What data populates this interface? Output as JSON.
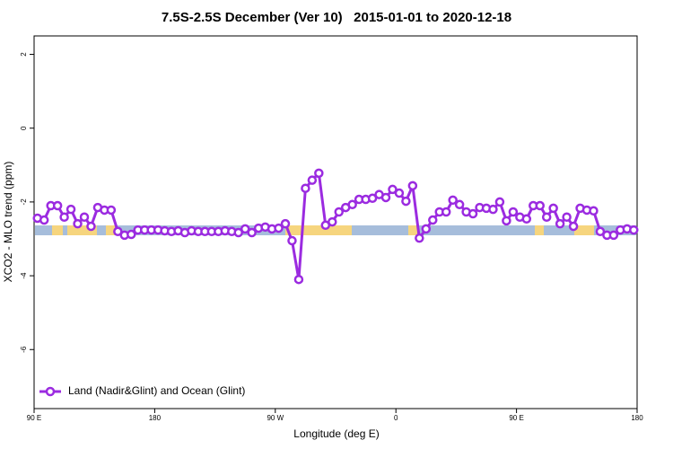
{
  "chart_data": {
    "type": "line",
    "title": "7.5S-2.5S December (Ver 10)   2015-01-01 to 2020-12-18",
    "x_label": "Longitude (deg E)",
    "y_label": "XCO2 - MLO trend (ppm)",
    "xlim": [
      90,
      540
    ],
    "ylim": [
      -7.6,
      2.5
    ],
    "xticks": [
      {
        "value": 90,
        "label": "90 E"
      },
      {
        "value": 180,
        "label": "180"
      },
      {
        "value": 270,
        "label": "90 W"
      },
      {
        "value": 360,
        "label": "0"
      },
      {
        "value": 450,
        "label": "90 E"
      },
      {
        "value": 540,
        "label": "180"
      }
    ],
    "yticks": [
      2,
      0,
      -2,
      -4,
      -6
    ],
    "legend": "bottomleft",
    "x": [
      92.5,
      97.5,
      102.5,
      107.5,
      112.5,
      117.5,
      122.5,
      127.5,
      132.5,
      137.5,
      142.5,
      147.5,
      152.5,
      157.5,
      162.5,
      167.5,
      172.5,
      177.5,
      182.5,
      187.5,
      192.5,
      197.5,
      202.5,
      207.5,
      212.5,
      217.5,
      222.5,
      227.5,
      232.5,
      237.5,
      242.5,
      247.5,
      252.5,
      257.5,
      262.5,
      267.5,
      272.5,
      277.5,
      282.5,
      287.5,
      292.5,
      297.5,
      302.5,
      307.5,
      312.5,
      317.5,
      322.5,
      327.5,
      332.5,
      337.5,
      342.5,
      347.5,
      352.5,
      357.5,
      362.5,
      367.5,
      372.5,
      377.5,
      382.5,
      387.5,
      392.5,
      397.5,
      402.5,
      407.5,
      412.5,
      417.5,
      422.5,
      427.5,
      432.5,
      437.5,
      442.5,
      447.5,
      452.5,
      457.5,
      462.5,
      467.5,
      472.5,
      477.5,
      482.5,
      487.5,
      492.5,
      497.5,
      502.5,
      507.5,
      512.5,
      517.5,
      522.5,
      527.5,
      532.5,
      537.5
    ],
    "series": [
      {
        "name": "Land (Nadir&Glint) and Ocean (Glint)",
        "color": "#9b2be0",
        "values": [
          -2.44,
          -2.49,
          -2.1,
          -2.1,
          -2.41,
          -2.2,
          -2.59,
          -2.41,
          -2.66,
          -2.15,
          -2.22,
          -2.22,
          -2.8,
          -2.9,
          -2.88,
          -2.76,
          -2.76,
          -2.76,
          -2.76,
          -2.78,
          -2.8,
          -2.78,
          -2.83,
          -2.78,
          -2.8,
          -2.8,
          -2.8,
          -2.8,
          -2.78,
          -2.8,
          -2.83,
          -2.73,
          -2.83,
          -2.71,
          -2.68,
          -2.73,
          -2.71,
          -2.59,
          -3.05,
          -4.1,
          -1.63,
          -1.41,
          -1.22,
          -2.63,
          -2.54,
          -2.27,
          -2.15,
          -2.07,
          -1.93,
          -1.93,
          -1.9,
          -1.8,
          -1.88,
          -1.66,
          -1.76,
          -1.98,
          -1.56,
          -2.98,
          -2.73,
          -2.49,
          -2.27,
          -2.27,
          -1.95,
          -2.07,
          -2.27,
          -2.32,
          -2.15,
          -2.17,
          -2.2,
          -2.0,
          -2.51,
          -2.27,
          -2.41,
          -2.46,
          -2.1,
          -2.1,
          -2.41,
          -2.17,
          -2.59,
          -2.41,
          -2.66,
          -2.17,
          -2.22,
          -2.24,
          -2.8,
          -2.9,
          -2.9,
          -2.76,
          -2.73,
          -2.76
        ]
      }
    ]
  }
}
